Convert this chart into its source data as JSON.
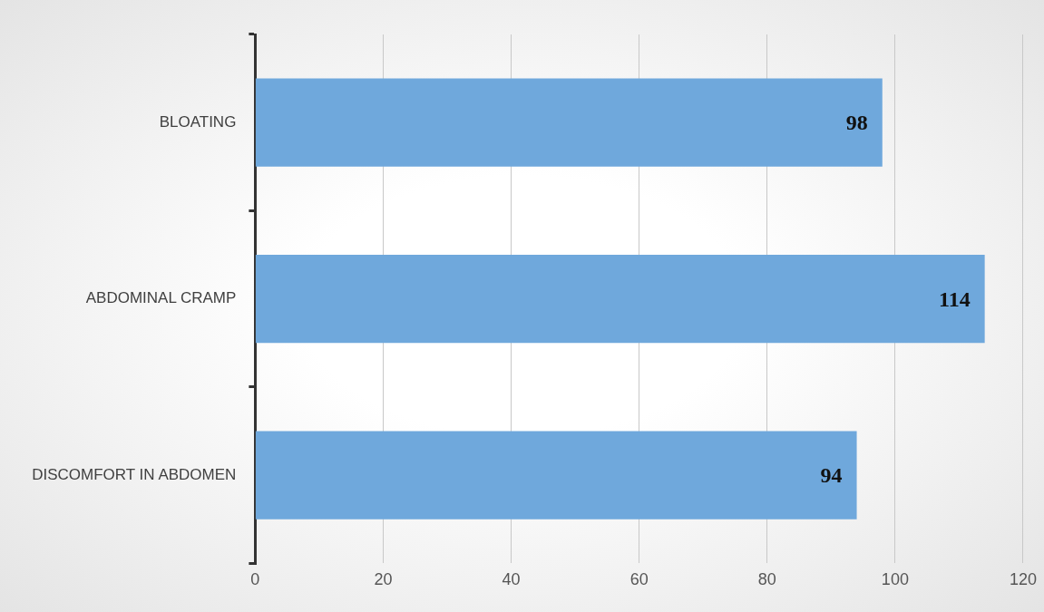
{
  "chart_data": {
    "type": "bar",
    "orientation": "horizontal",
    "categories": [
      "BLOATING",
      "ABDOMINAL CRAMP",
      "DISCOMFORT IN ABDOMEN"
    ],
    "values": [
      98,
      114,
      94
    ],
    "color": "#6fa8dc",
    "xlim": [
      0,
      120
    ],
    "xticks": [
      0,
      20,
      40,
      60,
      80,
      100,
      120
    ],
    "grid": "x",
    "legend": false,
    "data_labels": true
  }
}
